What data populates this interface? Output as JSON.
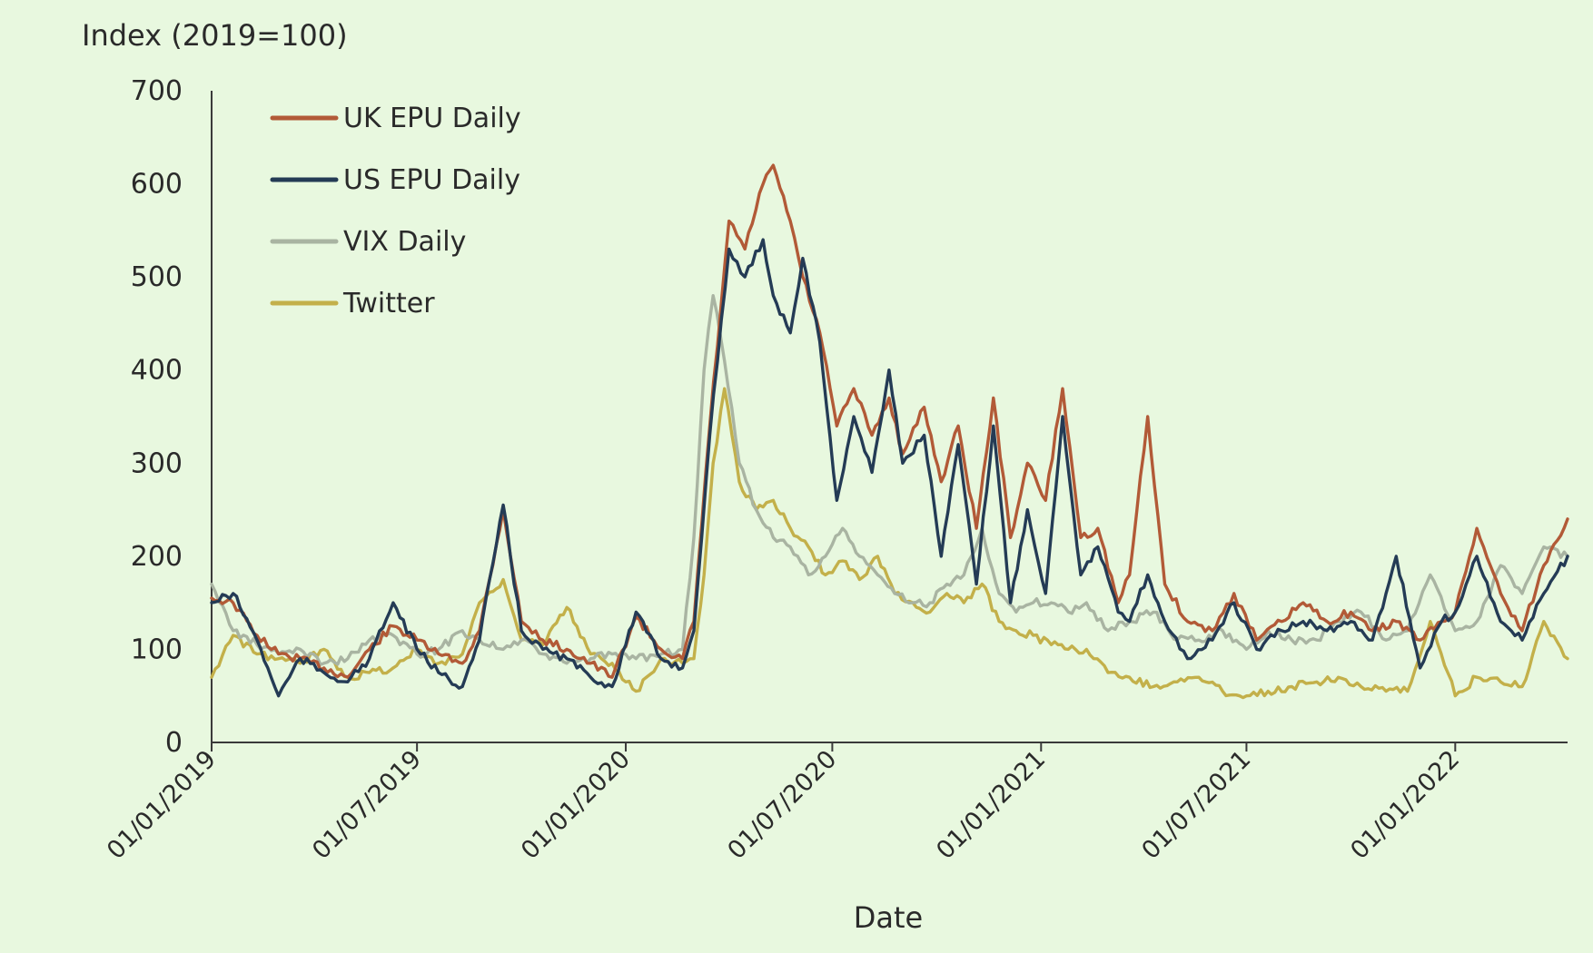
{
  "chart_data": {
    "type": "line",
    "ylabel": "Index (2019=100)",
    "xlabel": "Date",
    "ylim": [
      0,
      700
    ],
    "yticks": [
      "0",
      "100",
      "200",
      "300",
      "400",
      "500",
      "600",
      "700"
    ],
    "xlim": [
      "2019-01-01",
      "2022-04-10"
    ],
    "xtick_labels": [
      "01/01/2019",
      "01/07/2019",
      "01/01/2020",
      "01/07/2020",
      "01/01/2021",
      "01/07/2021",
      "01/01/2022"
    ],
    "xtick_dates": [
      "2019-01-01",
      "2019-07-01",
      "2020-01-01",
      "2020-07-01",
      "2021-01-01",
      "2021-07-01",
      "2022-01-01"
    ],
    "legend_position": "top-left",
    "grid": false,
    "series": [
      {
        "name": "UK EPU Daily",
        "color": "#b25a37",
        "x": [
          "2019-01-01",
          "2019-01-20",
          "2019-02-10",
          "2019-03-01",
          "2019-03-20",
          "2019-04-10",
          "2019-05-01",
          "2019-05-20",
          "2019-06-10",
          "2019-07-01",
          "2019-07-20",
          "2019-08-10",
          "2019-08-25",
          "2019-09-15",
          "2019-10-01",
          "2019-10-20",
          "2019-11-10",
          "2019-12-01",
          "2019-12-20",
          "2020-01-10",
          "2020-02-01",
          "2020-02-20",
          "2020-03-01",
          "2020-03-15",
          "2020-04-01",
          "2020-04-15",
          "2020-05-01",
          "2020-05-10",
          "2020-05-25",
          "2020-06-05",
          "2020-06-20",
          "2020-07-05",
          "2020-07-20",
          "2020-08-05",
          "2020-08-20",
          "2020-09-01",
          "2020-09-20",
          "2020-10-05",
          "2020-10-20",
          "2020-11-05",
          "2020-11-20",
          "2020-12-05",
          "2020-12-20",
          "2021-01-05",
          "2021-01-20",
          "2021-02-05",
          "2021-02-20",
          "2021-03-10",
          "2021-03-20",
          "2021-04-05",
          "2021-04-20",
          "2021-05-10",
          "2021-06-01",
          "2021-06-20",
          "2021-07-10",
          "2021-08-01",
          "2021-08-20",
          "2021-09-10",
          "2021-10-01",
          "2021-10-20",
          "2021-11-10",
          "2021-12-01",
          "2021-12-20",
          "2022-01-01",
          "2022-01-20",
          "2022-02-10",
          "2022-03-01",
          "2022-03-20",
          "2022-04-10"
        ],
        "values": [
          155,
          150,
          115,
          95,
          90,
          80,
          70,
          100,
          125,
          110,
          95,
          85,
          120,
          250,
          130,
          110,
          100,
          85,
          70,
          135,
          100,
          90,
          130,
          340,
          560,
          530,
          600,
          620,
          560,
          500,
          440,
          340,
          380,
          330,
          370,
          310,
          360,
          280,
          340,
          230,
          370,
          220,
          300,
          260,
          380,
          220,
          230,
          150,
          180,
          350,
          170,
          130,
          120,
          160,
          110,
          130,
          150,
          130,
          140,
          120,
          130,
          110,
          130,
          140,
          230,
          160,
          120,
          190,
          240
        ]
      },
      {
        "name": "US EPU Daily",
        "color": "#243b55",
        "x": [
          "2019-01-01",
          "2019-01-20",
          "2019-02-10",
          "2019-03-01",
          "2019-03-20",
          "2019-04-10",
          "2019-05-01",
          "2019-05-20",
          "2019-06-10",
          "2019-07-01",
          "2019-07-20",
          "2019-08-10",
          "2019-08-25",
          "2019-09-15",
          "2019-10-01",
          "2019-10-20",
          "2019-11-10",
          "2019-12-01",
          "2019-12-20",
          "2020-01-10",
          "2020-02-01",
          "2020-02-20",
          "2020-03-01",
          "2020-03-15",
          "2020-04-01",
          "2020-04-15",
          "2020-05-01",
          "2020-05-10",
          "2020-05-25",
          "2020-06-05",
          "2020-06-20",
          "2020-07-05",
          "2020-07-20",
          "2020-08-05",
          "2020-08-20",
          "2020-09-01",
          "2020-09-20",
          "2020-10-05",
          "2020-10-20",
          "2020-11-05",
          "2020-11-20",
          "2020-12-05",
          "2020-12-20",
          "2021-01-05",
          "2021-01-20",
          "2021-02-05",
          "2021-02-20",
          "2021-03-10",
          "2021-03-20",
          "2021-04-05",
          "2021-04-20",
          "2021-05-10",
          "2021-06-01",
          "2021-06-20",
          "2021-07-10",
          "2021-08-01",
          "2021-08-20",
          "2021-09-10",
          "2021-10-01",
          "2021-10-20",
          "2021-11-10",
          "2021-12-01",
          "2021-12-20",
          "2022-01-01",
          "2022-01-20",
          "2022-02-10",
          "2022-03-01",
          "2022-03-20",
          "2022-04-10"
        ],
        "values": [
          150,
          160,
          110,
          50,
          90,
          75,
          65,
          90,
          150,
          100,
          75,
          60,
          110,
          255,
          120,
          100,
          90,
          70,
          60,
          140,
          90,
          80,
          120,
          330,
          530,
          500,
          540,
          480,
          440,
          520,
          430,
          260,
          350,
          290,
          400,
          300,
          330,
          200,
          320,
          170,
          340,
          150,
          250,
          160,
          350,
          180,
          210,
          140,
          130,
          180,
          130,
          90,
          110,
          150,
          100,
          120,
          130,
          120,
          130,
          110,
          200,
          80,
          130,
          140,
          200,
          130,
          110,
          160,
          200
        ]
      },
      {
        "name": "VIX Daily",
        "color": "#a9b4a2",
        "x": [
          "2019-01-01",
          "2019-01-20",
          "2019-02-10",
          "2019-03-01",
          "2019-03-20",
          "2019-04-10",
          "2019-05-01",
          "2019-05-20",
          "2019-06-10",
          "2019-07-01",
          "2019-07-20",
          "2019-08-10",
          "2019-08-25",
          "2019-09-15",
          "2019-10-01",
          "2019-10-20",
          "2019-11-10",
          "2019-12-01",
          "2019-12-20",
          "2020-01-10",
          "2020-02-01",
          "2020-02-20",
          "2020-03-01",
          "2020-03-10",
          "2020-03-18",
          "2020-03-28",
          "2020-04-10",
          "2020-04-25",
          "2020-05-10",
          "2020-05-25",
          "2020-06-10",
          "2020-06-25",
          "2020-07-10",
          "2020-07-25",
          "2020-08-10",
          "2020-08-25",
          "2020-09-10",
          "2020-09-25",
          "2020-10-10",
          "2020-10-25",
          "2020-11-10",
          "2020-11-25",
          "2020-12-10",
          "2020-12-25",
          "2021-01-10",
          "2021-01-25",
          "2021-02-10",
          "2021-03-01",
          "2021-03-20",
          "2021-04-10",
          "2021-05-01",
          "2021-05-20",
          "2021-06-10",
          "2021-07-01",
          "2021-07-20",
          "2021-08-10",
          "2021-09-01",
          "2021-09-20",
          "2021-10-10",
          "2021-11-01",
          "2021-11-20",
          "2021-12-10",
          "2022-01-01",
          "2022-01-20",
          "2022-02-10",
          "2022-03-01",
          "2022-03-20",
          "2022-04-10"
        ],
        "values": [
          170,
          120,
          105,
          95,
          100,
          85,
          90,
          110,
          115,
          95,
          100,
          120,
          110,
          100,
          110,
          95,
          85,
          90,
          95,
          90,
          95,
          100,
          220,
          400,
          480,
          410,
          300,
          250,
          220,
          210,
          180,
          200,
          230,
          200,
          180,
          160,
          150,
          150,
          170,
          180,
          230,
          160,
          140,
          150,
          150,
          140,
          150,
          120,
          130,
          140,
          110,
          110,
          120,
          100,
          120,
          110,
          110,
          130,
          140,
          110,
          120,
          180,
          120,
          130,
          190,
          160,
          210,
          200
        ]
      },
      {
        "name": "Twitter",
        "color": "#c3b04a",
        "x": [
          "2019-01-01",
          "2019-01-20",
          "2019-02-10",
          "2019-03-01",
          "2019-03-20",
          "2019-04-10",
          "2019-05-01",
          "2019-05-20",
          "2019-06-10",
          "2019-07-01",
          "2019-07-20",
          "2019-08-10",
          "2019-08-25",
          "2019-09-15",
          "2019-10-01",
          "2019-10-20",
          "2019-11-10",
          "2019-12-01",
          "2019-12-20",
          "2020-01-10",
          "2020-02-01",
          "2020-02-20",
          "2020-03-01",
          "2020-03-10",
          "2020-03-18",
          "2020-03-28",
          "2020-04-10",
          "2020-04-25",
          "2020-05-10",
          "2020-05-25",
          "2020-06-10",
          "2020-06-25",
          "2020-07-10",
          "2020-07-25",
          "2020-08-10",
          "2020-08-25",
          "2020-09-10",
          "2020-09-25",
          "2020-10-10",
          "2020-10-25",
          "2020-11-10",
          "2020-11-25",
          "2020-12-10",
          "2020-12-25",
          "2021-01-10",
          "2021-01-25",
          "2021-02-10",
          "2021-03-01",
          "2021-03-20",
          "2021-04-10",
          "2021-05-01",
          "2021-05-20",
          "2021-06-10",
          "2021-07-01",
          "2021-07-20",
          "2021-08-10",
          "2021-09-01",
          "2021-09-20",
          "2021-10-10",
          "2021-11-01",
          "2021-11-20",
          "2021-12-10",
          "2022-01-01",
          "2022-01-20",
          "2022-02-10",
          "2022-03-01",
          "2022-03-20",
          "2022-04-10"
        ],
        "values": [
          70,
          115,
          95,
          90,
          85,
          100,
          70,
          75,
          80,
          100,
          85,
          95,
          150,
          175,
          110,
          105,
          145,
          95,
          85,
          55,
          90,
          85,
          90,
          180,
          300,
          380,
          280,
          250,
          260,
          230,
          210,
          180,
          195,
          175,
          200,
          160,
          150,
          140,
          160,
          150,
          170,
          130,
          120,
          115,
          105,
          100,
          100,
          75,
          70,
          60,
          65,
          70,
          55,
          50,
          55,
          60,
          65,
          70,
          60,
          55,
          55,
          130,
          50,
          70,
          65,
          60,
          130,
          90
        ]
      }
    ]
  }
}
